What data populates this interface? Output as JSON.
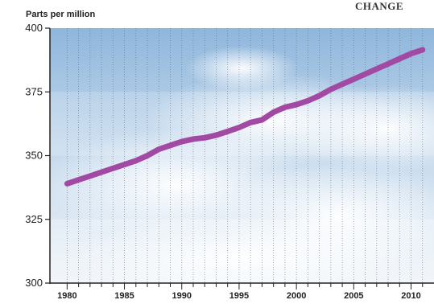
{
  "brand": {
    "text": "CHANGE"
  },
  "chart_data": {
    "type": "line",
    "title": "",
    "xlabel": "",
    "ylabel": "Parts per million",
    "xlim": [
      1978.5,
      2012
    ],
    "ylim": [
      300,
      400
    ],
    "x_ticks": [
      1980,
      1985,
      1990,
      1995,
      2000,
      2005,
      2010
    ],
    "y_ticks": [
      300,
      325,
      350,
      375,
      400
    ],
    "grid": true,
    "line_color": "#a24aa3",
    "series": [
      {
        "x": [
          1980,
          1981,
          1982,
          1983,
          1984,
          1985,
          1986,
          1987,
          1988,
          1989,
          1990,
          1991,
          1992,
          1993,
          1994,
          1995,
          1996,
          1997,
          1998,
          1999,
          2000,
          2001,
          2002,
          2003,
          2004,
          2005,
          2006,
          2007,
          2008,
          2009,
          2010,
          2011
        ],
        "values": [
          339,
          340.5,
          342,
          343.5,
          345,
          346.5,
          348,
          350,
          352.5,
          354,
          355.5,
          356.5,
          357,
          358,
          359.5,
          361,
          363,
          364,
          367,
          369,
          370,
          371.5,
          373.5,
          376,
          378,
          380,
          382,
          384,
          386,
          388,
          390,
          391.5
        ]
      }
    ]
  }
}
